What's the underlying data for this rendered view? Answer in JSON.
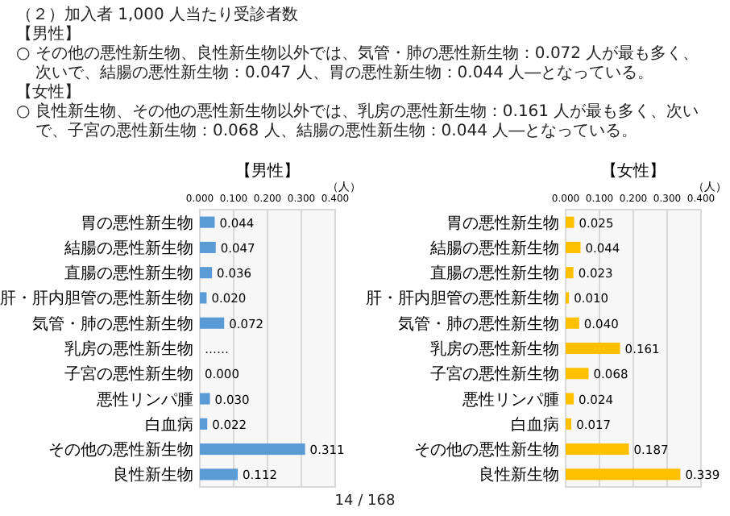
{
  "chart_data": [
    {
      "type": "other",
      "title": "（２）加入者 1,000 人当たり受診者数",
      "annotations": [
        "【男性】",
        "○ その他の悪性新生物、良性新生物以外では、気管・肺の悪性新生物：0.072 人が最も多く、次いで、結腸の悪性新生物：0.047 人、胃の悪性新生物：0.044 人―となっている。",
        "【女性】",
        "○ 良性新生物、その他の悪性新生物以外では、乳房の悪性新生物：0.161 人が最も多く、次いで、子宮の悪性新生物：0.068 人、結腸の悪性新生物：0.044 人―となっている。",
        "14 / 168"
      ]
    },
    {
      "type": "bar",
      "orientation": "horizontal",
      "title": "【男性】",
      "xlabel": "（人）",
      "categories": [
        "胃の悪性新生物",
        "結腸の悪性新生物",
        "直腸の悪性新生物",
        "肝・肝内胆管の悪性新生物",
        "気管・肺の悪性新生物",
        "乳房の悪性新生物",
        "子宮の悪性新生物",
        "悪性リンパ腫",
        "白血病",
        "その他の悪性新生物",
        "良性新生物"
      ],
      "values": [
        0.044,
        0.047,
        0.036,
        0.02,
        0.072,
        null,
        0.0,
        0.03,
        0.022,
        0.311,
        0.112
      ],
      "value_labels": [
        "0.044",
        "0.047",
        "0.036",
        "0.020",
        "0.072",
        "……",
        "0.000",
        "0.030",
        "0.022",
        "0.311",
        "0.112"
      ],
      "color": "#5b9bd5",
      "xlim": [
        0,
        0.4
      ],
      "xticks": [
        {
          "value": 0,
          "label": "0.000"
        },
        {
          "value": 0.1,
          "label": "0.100"
        },
        {
          "value": 0.2,
          "label": "0.200"
        },
        {
          "value": 0.3,
          "label": "0.300"
        },
        {
          "value": 0.4,
          "label": "0.400"
        }
      ],
      "grid": "x"
    },
    {
      "type": "bar",
      "orientation": "horizontal",
      "title": "【女性】",
      "xlabel": "（人）",
      "categories": [
        "胃の悪性新生物",
        "結腸の悪性新生物",
        "直腸の悪性新生物",
        "肝・肝内胆管の悪性新生物",
        "気管・肺の悪性新生物",
        "乳房の悪性新生物",
        "子宮の悪性新生物",
        "悪性リンパ腫",
        "白血病",
        "その他の悪性新生物",
        "良性新生物"
      ],
      "values": [
        0.025,
        0.044,
        0.023,
        0.01,
        0.04,
        0.161,
        0.068,
        0.024,
        0.017,
        0.187,
        0.339
      ],
      "value_labels": [
        "0.025",
        "0.044",
        "0.023",
        "0.010",
        "0.040",
        "0.161",
        "0.068",
        "0.024",
        "0.017",
        "0.187",
        "0.339"
      ],
      "color": "#ffc000",
      "xlim": [
        0,
        0.4
      ],
      "xticks": [
        {
          "value": 0,
          "label": "0.000"
        },
        {
          "value": 0.1,
          "label": "0.100"
        },
        {
          "value": 0.2,
          "label": "0.200"
        },
        {
          "value": 0.3,
          "label": "0.300"
        },
        {
          "value": 0.4,
          "label": "0.400"
        }
      ],
      "grid": "x"
    }
  ]
}
